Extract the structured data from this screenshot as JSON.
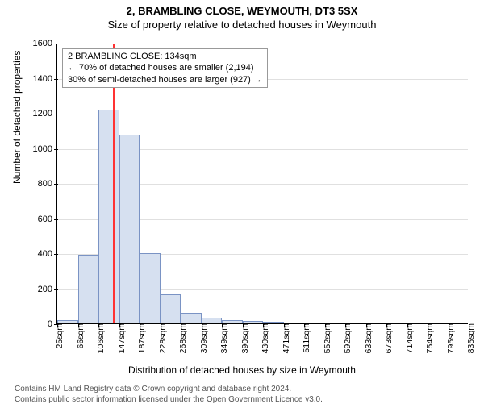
{
  "title_main": "2, BRAMBLING CLOSE, WEYMOUTH, DT3 5SX",
  "title_sub": "Size of property relative to detached houses in Weymouth",
  "ylabel": "Number of detached properties",
  "xlabel": "Distribution of detached houses by size in Weymouth",
  "footer_line1": "Contains HM Land Registry data © Crown copyright and database right 2024.",
  "footer_line2": "Contains public sector information licensed under the Open Government Licence v3.0.",
  "chart": {
    "type": "histogram",
    "background_color": "#ffffff",
    "grid_color": "#e0e0e0",
    "axis_color": "#000000",
    "bar_fill": "#d6e0f0",
    "bar_border": "#7a93c4",
    "ref_line_color": "#ff3333",
    "ylim": [
      0,
      1600
    ],
    "ytick_step": 200,
    "yticks": [
      0,
      200,
      400,
      600,
      800,
      1000,
      1200,
      1400,
      1600
    ],
    "xticks": [
      "25sqm",
      "66sqm",
      "106sqm",
      "147sqm",
      "187sqm",
      "228sqm",
      "268sqm",
      "309sqm",
      "349sqm",
      "390sqm",
      "430sqm",
      "471sqm",
      "511sqm",
      "552sqm",
      "592sqm",
      "633sqm",
      "673sqm",
      "714sqm",
      "754sqm",
      "795sqm",
      "835sqm"
    ],
    "bars": [
      20,
      390,
      1220,
      1075,
      400,
      165,
      60,
      30,
      20,
      15,
      10,
      0,
      0,
      0,
      0,
      0,
      0,
      0,
      0,
      0
    ],
    "ref_line_bin_index": 2,
    "ref_line_fraction_in_bin": 0.69,
    "annotation": {
      "line1": "2 BRAMBLING CLOSE: 134sqm",
      "line2": "← 70% of detached houses are smaller (2,194)",
      "line3": "30% of semi-detached houses are larger (927) →"
    },
    "title_fontsize": 13,
    "label_fontsize": 12,
    "tick_fontsize": 11,
    "annotation_fontsize": 11
  }
}
